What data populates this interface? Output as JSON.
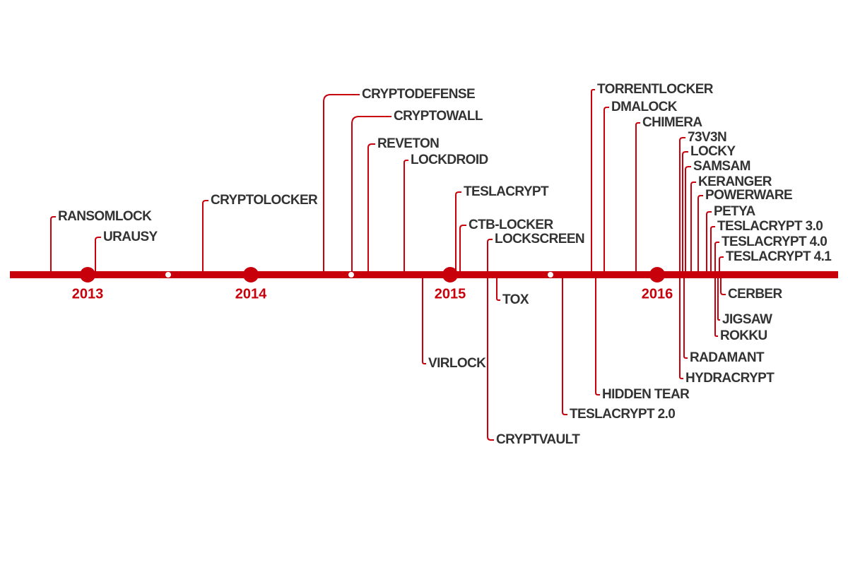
{
  "years": [
    "2013",
    "2014",
    "2015",
    "2016"
  ],
  "events": [
    {
      "name": "RANSOMLOCK"
    },
    {
      "name": "URAUSY"
    },
    {
      "name": "CRYPTOLOCKER"
    },
    {
      "name": "CRYPTODEFENSE"
    },
    {
      "name": "CRYPTOWALL"
    },
    {
      "name": "REVETON"
    },
    {
      "name": "LOCKDROID"
    },
    {
      "name": "TESLACRYPT"
    },
    {
      "name": "CTB-LOCKER"
    },
    {
      "name": "LOCKSCREEN"
    },
    {
      "name": "TORRENTLOCKER"
    },
    {
      "name": "DMALOCK"
    },
    {
      "name": "CHIMERA"
    },
    {
      "name": "73V3N"
    },
    {
      "name": "LOCKY"
    },
    {
      "name": "SAMSAM"
    },
    {
      "name": "KERANGER"
    },
    {
      "name": "POWERWARE"
    },
    {
      "name": "PETYA"
    },
    {
      "name": "TESLACRYPT 3.0"
    },
    {
      "name": "TESLACRYPT 4.0"
    },
    {
      "name": "TESLACRYPT 4.1"
    },
    {
      "name": "TOX"
    },
    {
      "name": "VIRLOCK"
    },
    {
      "name": "CRYPTVAULT"
    },
    {
      "name": "TESLACRYPT 2.0"
    },
    {
      "name": "HIDDEN TEAR"
    },
    {
      "name": "HYDRACRYPT"
    },
    {
      "name": "RADAMANT"
    },
    {
      "name": "ROKKU"
    },
    {
      "name": "JIGSAW"
    },
    {
      "name": "CERBER"
    }
  ]
}
